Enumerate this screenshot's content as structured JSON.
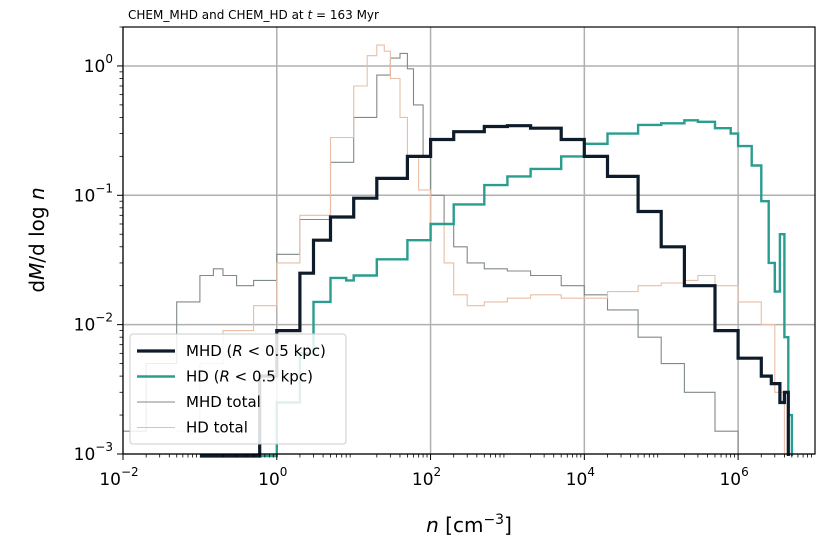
{
  "chart_data": {
    "type": "line",
    "drawstyle": "steps",
    "title": "CHEM_MHD and CHEM_HD at t = 163 Myr",
    "xlabel": "n [cm^-3]",
    "ylabel": "dM/d log n",
    "xscale": "log",
    "yscale": "log",
    "xlim": [
      0.01,
      10000000
    ],
    "ylim": [
      0.001,
      2
    ],
    "grid": true,
    "legend_position": "lower-left",
    "x_ticks": [
      0.01,
      1,
      100,
      10000,
      1000000
    ],
    "x_tick_labels": [
      [
        "10",
        "−2"
      ],
      [
        "10",
        "0"
      ],
      [
        "10",
        "2"
      ],
      [
        "10",
        "4"
      ],
      [
        "10",
        "6"
      ]
    ],
    "y_ticks": [
      0.001,
      0.01,
      0.1,
      1
    ],
    "y_tick_labels": [
      [
        "10",
        "−3"
      ],
      [
        "10",
        "−2"
      ],
      [
        "10",
        "−1"
      ],
      [
        "10",
        "0"
      ]
    ],
    "series": [
      {
        "name": "MHD (R < 0.5 kpc)",
        "color": "#0d1b2a",
        "width": 3.2,
        "x": [
          0.1,
          0.3,
          0.6,
          1,
          2,
          3,
          5,
          10,
          20,
          50,
          100,
          200,
          500,
          1000,
          2000,
          5000,
          10000,
          20000,
          50000,
          100000,
          200000,
          500000,
          1000000,
          2000000,
          2700000,
          3500000,
          4000000,
          4500000
        ],
        "values": [
          0.0006,
          0.0009,
          0.004,
          0.009,
          0.025,
          0.045,
          0.068,
          0.095,
          0.135,
          0.2,
          0.27,
          0.31,
          0.34,
          0.345,
          0.33,
          0.27,
          0.2,
          0.14,
          0.075,
          0.04,
          0.02,
          0.009,
          0.0055,
          0.004,
          0.0035,
          0.0025,
          0.003,
          0.0008
        ]
      },
      {
        "name": "HD (R < 0.5 kpc)",
        "color": "#2a9d8f",
        "width": 2.4,
        "x": [
          0.5,
          1,
          2,
          3,
          5,
          8,
          10,
          20,
          50,
          100,
          200,
          500,
          1000,
          2000,
          5000,
          10000,
          20000,
          50000,
          100000,
          200000,
          300000,
          500000,
          800000,
          1000000,
          1500000,
          2000000,
          2500000,
          3000000,
          3500000,
          4000000,
          4500000,
          5000000
        ],
        "values": [
          0.0008,
          0.0025,
          0.006,
          0.015,
          0.023,
          0.022,
          0.024,
          0.032,
          0.045,
          0.06,
          0.085,
          0.12,
          0.14,
          0.16,
          0.2,
          0.25,
          0.3,
          0.35,
          0.36,
          0.38,
          0.37,
          0.33,
          0.3,
          0.24,
          0.17,
          0.09,
          0.03,
          0.018,
          0.05,
          0.008,
          0.002,
          0.0008
        ]
      },
      {
        "name": "MHD total",
        "color": "#808a85",
        "width": 1.1,
        "x": [
          0.01,
          0.02,
          0.05,
          0.1,
          0.15,
          0.2,
          0.3,
          0.5,
          1,
          2,
          5,
          10,
          20,
          30,
          40,
          50,
          60,
          80,
          100,
          150,
          200,
          300,
          500,
          1000,
          2000,
          5000,
          10000,
          20000,
          50000,
          100000,
          200000,
          500000,
          1000000
        ],
        "values": [
          0.0015,
          0.005,
          0.015,
          0.024,
          0.027,
          0.024,
          0.02,
          0.022,
          0.035,
          0.065,
          0.18,
          0.4,
          0.85,
          1.15,
          1.25,
          0.95,
          0.5,
          0.2,
          0.1,
          0.06,
          0.04,
          0.03,
          0.027,
          0.026,
          0.024,
          0.02,
          0.017,
          0.013,
          0.008,
          0.005,
          0.003,
          0.0015,
          0.0009
        ]
      },
      {
        "name": "HD total",
        "color": "#e8bea6",
        "width": 1.1,
        "x": [
          0.05,
          0.1,
          0.2,
          0.5,
          1,
          2,
          5,
          10,
          15,
          20,
          25,
          30,
          40,
          50,
          70,
          100,
          150,
          200,
          300,
          500,
          1000,
          2000,
          5000,
          10000,
          20000,
          50000,
          100000,
          200000,
          300000,
          500000,
          1000000,
          2000000,
          3000000,
          4000000
        ],
        "values": [
          0.0015,
          0.005,
          0.009,
          0.014,
          0.03,
          0.07,
          0.28,
          0.7,
          1.2,
          1.45,
          1.3,
          0.8,
          0.4,
          0.2,
          0.11,
          0.06,
          0.03,
          0.017,
          0.014,
          0.015,
          0.016,
          0.017,
          0.016,
          0.016,
          0.018,
          0.02,
          0.021,
          0.022,
          0.024,
          0.02,
          0.015,
          0.01,
          0.003,
          0.001
        ]
      }
    ],
    "legend": [
      [
        "MHD (",
        "R",
        " < 0.5 kpc)"
      ],
      [
        "HD (",
        "R",
        " < 0.5 kpc)"
      ],
      [
        "MHD total",
        "",
        ""
      ],
      [
        "HD total",
        "",
        ""
      ]
    ]
  }
}
